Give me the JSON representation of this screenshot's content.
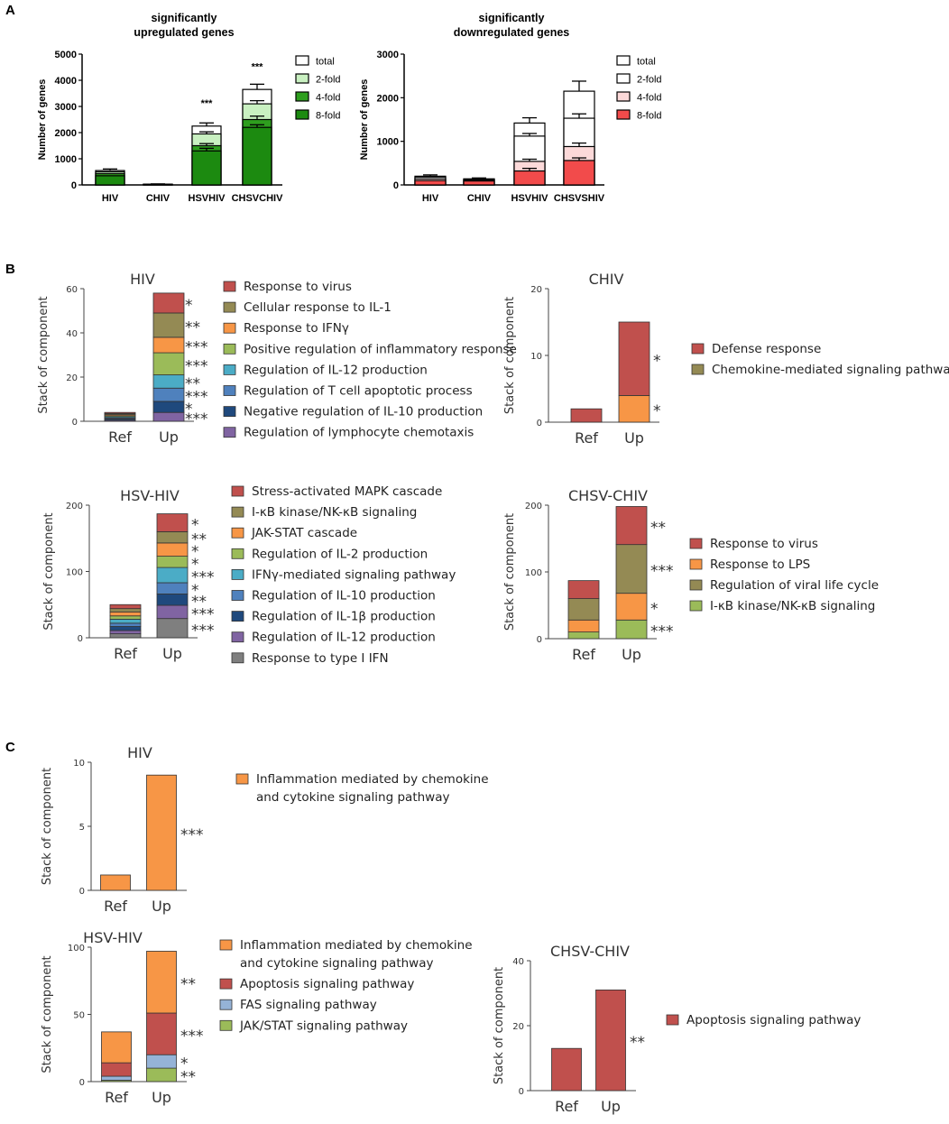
{
  "colors": {
    "a_up": {
      "total": "#ffffff",
      "2-fold": "#c9f0c1",
      "4-fold": "#2e9e1e",
      "8-fold": "#1c8a10"
    },
    "a_down": {
      "total": "#ffffff",
      "2-fold": "#ffffff",
      "4-fold": "#fcd9d9",
      "8-fold": "#f24b4b"
    },
    "go_red": "#c0504d",
    "go_olive": "#948a54",
    "go_orange": "#f79646",
    "go_lightgreen": "#9bbb59",
    "go_cyan": "#4bacc6",
    "go_blue": "#4f81bd",
    "go_navy": "#1f497d",
    "go_purple": "#8064a2",
    "go_gray": "#7f7f7f",
    "go_lightblue": "#95b3d7"
  },
  "panels": {
    "a": "A",
    "b": "B",
    "c": "C"
  },
  "chart_data": [
    {
      "id": "a-up",
      "type": "bar",
      "stacked": "overlay",
      "title": [
        "significantly",
        "upregulated genes"
      ],
      "ylabel": "Number of genes",
      "ylim": [
        0,
        5000
      ],
      "yticks": [
        0,
        1000,
        2000,
        3000,
        4000,
        5000
      ],
      "categories": [
        "HIV",
        "CHIV",
        "HSVHIV",
        "CHSVCHIV"
      ],
      "legend": [
        "total",
        "2-fold",
        "4-fold",
        "8-fold"
      ],
      "series": [
        {
          "name": "total",
          "values": [
            550,
            30,
            2250,
            3650
          ],
          "errors": [
            60,
            10,
            120,
            200
          ]
        },
        {
          "name": "2-fold",
          "values": [
            500,
            25,
            1950,
            3100
          ],
          "errors": [
            0,
            0,
            80,
            120
          ]
        },
        {
          "name": "4-fold",
          "values": [
            430,
            20,
            1500,
            2500
          ],
          "errors": [
            0,
            0,
            80,
            130
          ]
        },
        {
          "name": "8-fold",
          "values": [
            350,
            15,
            1300,
            2200
          ],
          "errors": [
            0,
            0,
            100,
            100
          ]
        }
      ],
      "annotations": [
        {
          "category": "HSVHIV",
          "text": "***",
          "y": 3000
        },
        {
          "category": "CHSVCHIV",
          "text": "***",
          "y": 4400
        }
      ]
    },
    {
      "id": "a-down",
      "type": "bar",
      "stacked": "overlay",
      "title": [
        "significantly",
        "downregulated genes"
      ],
      "ylabel": "Number of genes",
      "ylim": [
        0,
        3000
      ],
      "yticks": [
        0,
        1000,
        2000,
        3000
      ],
      "categories": [
        "HIV",
        "CHIV",
        "HSVHIV",
        "CHSVSHIV"
      ],
      "legend": [
        "total",
        "2-fold",
        "4-fold",
        "8-fold"
      ],
      "series": [
        {
          "name": "total",
          "values": [
            200,
            140,
            1420,
            2150
          ],
          "errors": [
            30,
            20,
            120,
            230
          ]
        },
        {
          "name": "2-fold",
          "values": [
            180,
            130,
            1120,
            1530
          ],
          "errors": [
            0,
            0,
            60,
            100
          ]
        },
        {
          "name": "4-fold",
          "values": [
            140,
            110,
            540,
            880
          ],
          "errors": [
            0,
            0,
            50,
            80
          ]
        },
        {
          "name": "8-fold",
          "values": [
            100,
            90,
            320,
            560
          ],
          "errors": [
            0,
            0,
            60,
            60
          ]
        }
      ],
      "annotations": []
    },
    {
      "id": "b-hiv",
      "type": "bar",
      "stacked": true,
      "title": "HIV",
      "ylabel": "Stack of component",
      "ylim": [
        0,
        60
      ],
      "yticks": [
        0,
        20,
        40,
        60
      ],
      "categories": [
        "Ref",
        "Up"
      ],
      "series": [
        {
          "name": "Response to virus",
          "color": "go_red",
          "values": [
            0.5,
            9
          ]
        },
        {
          "name": "Cellular response to IL-1",
          "color": "go_olive",
          "values": [
            0.5,
            11
          ]
        },
        {
          "name": "Response to IFNγ",
          "color": "go_orange",
          "values": [
            0.5,
            7
          ]
        },
        {
          "name": "Positive regulation of inflammatory response",
          "color": "go_lightgreen",
          "values": [
            0.5,
            10
          ]
        },
        {
          "name": "Regulation of IL-12 production",
          "color": "go_cyan",
          "values": [
            0.5,
            6
          ]
        },
        {
          "name": "Regulation of T cell apoptotic process",
          "color": "go_blue",
          "values": [
            0.5,
            6
          ]
        },
        {
          "name": "Negative regulation of IL-10 production",
          "color": "go_navy",
          "values": [
            0.5,
            5
          ]
        },
        {
          "name": "Regulation of lymphocyte chemotaxis",
          "color": "go_purple",
          "values": [
            0.5,
            4
          ]
        }
      ],
      "stars": [
        "*",
        "**",
        "***",
        "***",
        "**",
        "***",
        "*",
        "***"
      ]
    },
    {
      "id": "b-chiv",
      "type": "bar",
      "stacked": true,
      "title": "CHIV",
      "ylabel": "Stack of component",
      "ylim": [
        0,
        20
      ],
      "yticks": [
        0,
        10,
        20
      ],
      "categories": [
        "Ref",
        "Up"
      ],
      "series": [
        {
          "name": "Defense response",
          "color": "go_red",
          "values": [
            2,
            11
          ]
        },
        {
          "name": "Chemokine-mediated signaling pathway",
          "color": "go_orange",
          "legend_color": "go_olive",
          "values": [
            0,
            4
          ]
        }
      ],
      "stars": [
        "*",
        "*"
      ]
    },
    {
      "id": "b-hsvhiv",
      "type": "bar",
      "stacked": true,
      "title": "HSV-HIV",
      "ylabel": "Stack of component",
      "ylim": [
        0,
        200
      ],
      "yticks": [
        0,
        100,
        200
      ],
      "categories": [
        "Ref",
        "Up"
      ],
      "series": [
        {
          "name": "Stress-activated MAPK cascade",
          "color": "go_red",
          "values": [
            6,
            27
          ]
        },
        {
          "name": "I-κB kinase/NK-κB signaling",
          "color": "go_olive",
          "values": [
            5,
            17
          ]
        },
        {
          "name": "JAK-STAT cascade",
          "color": "go_orange",
          "values": [
            6,
            20
          ]
        },
        {
          "name": "Regulation of IL-2 production",
          "color": "go_lightgreen",
          "values": [
            5,
            17
          ]
        },
        {
          "name": "IFNγ-mediated signaling pathway",
          "color": "go_cyan",
          "values": [
            6,
            23
          ]
        },
        {
          "name": "Regulation of IL-10 production",
          "color": "go_blue",
          "values": [
            5,
            17
          ]
        },
        {
          "name": "Regulation of IL-1β production",
          "color": "go_navy",
          "values": [
            6,
            17
          ]
        },
        {
          "name": "Regulation of IL-12 production",
          "color": "go_purple",
          "values": [
            5,
            20
          ]
        },
        {
          "name": "Response to type I IFN",
          "color": "go_gray",
          "values": [
            6,
            29
          ]
        }
      ],
      "stars": [
        "*",
        "**",
        "*",
        "*",
        "***",
        "*",
        "**",
        "***",
        "***"
      ]
    },
    {
      "id": "b-chsvchiv",
      "type": "bar",
      "stacked": true,
      "title": "CHSV-CHIV",
      "ylabel": "Stack of component",
      "ylim": [
        0,
        200
      ],
      "yticks": [
        0,
        100,
        200
      ],
      "categories": [
        "Ref",
        "Up"
      ],
      "series": [
        {
          "name": "Response to virus",
          "color": "go_red",
          "values": [
            27,
            57
          ]
        },
        {
          "name": "Response to LPS",
          "color": "go_olive",
          "legend_color": "go_orange",
          "values": [
            32,
            73
          ]
        },
        {
          "name": "Regulation of viral life cycle",
          "color": "go_orange",
          "legend_color": "go_olive",
          "values": [
            18,
            40
          ]
        },
        {
          "name": "I-κB kinase/NK-κB signaling",
          "color": "go_lightgreen",
          "values": [
            10,
            28
          ]
        }
      ],
      "stars": [
        "**",
        "***",
        "*",
        "***"
      ]
    },
    {
      "id": "c-hiv",
      "type": "bar",
      "stacked": true,
      "title": "HIV",
      "ylabel": "Stack of component",
      "ylim": [
        0,
        10
      ],
      "yticks": [
        0,
        5,
        10
      ],
      "categories": [
        "Ref",
        "Up"
      ],
      "series": [
        {
          "name": "Inflammation mediated by chemokine and cytokine signaling pathway",
          "legend_lines": [
            "Inflammation mediated by chemokine",
            "and cytokine signaling pathway"
          ],
          "color": "go_orange",
          "values": [
            1.2,
            9
          ]
        }
      ],
      "stars": [
        "***"
      ]
    },
    {
      "id": "c-hsvhiv",
      "type": "bar",
      "stacked": true,
      "title": "HSV-HIV",
      "ylabel": "Stack of component",
      "ylim": [
        0,
        100
      ],
      "yticks": [
        0,
        50,
        100
      ],
      "categories": [
        "Ref",
        "Up"
      ],
      "series": [
        {
          "name": "Inflammation mediated by chemokine and cytokine signaling pathway",
          "legend_lines": [
            "Inflammation mediated by chemokine",
            "and cytokine signaling pathway"
          ],
          "color": "go_orange",
          "values": [
            23,
            46
          ]
        },
        {
          "name": "Apoptosis signaling pathway",
          "color": "go_red",
          "values": [
            10,
            31
          ]
        },
        {
          "name": "FAS signaling pathway",
          "color": "go_lightblue",
          "values": [
            3,
            10
          ]
        },
        {
          "name": "JAK/STAT signaling pathway",
          "color": "go_lightgreen",
          "values": [
            1,
            10
          ]
        }
      ],
      "stars": [
        "**",
        "***",
        "*",
        "**"
      ]
    },
    {
      "id": "c-chsvchiv",
      "type": "bar",
      "stacked": true,
      "title": "CHSV-CHIV",
      "ylabel": "Stack of component",
      "ylim": [
        0,
        40
      ],
      "yticks": [
        0,
        20,
        40
      ],
      "categories": [
        "Ref",
        "Up"
      ],
      "series": [
        {
          "name": "Apoptosis signaling pathway",
          "color": "go_red",
          "values": [
            13,
            31
          ]
        }
      ],
      "stars": [
        "**"
      ]
    }
  ]
}
